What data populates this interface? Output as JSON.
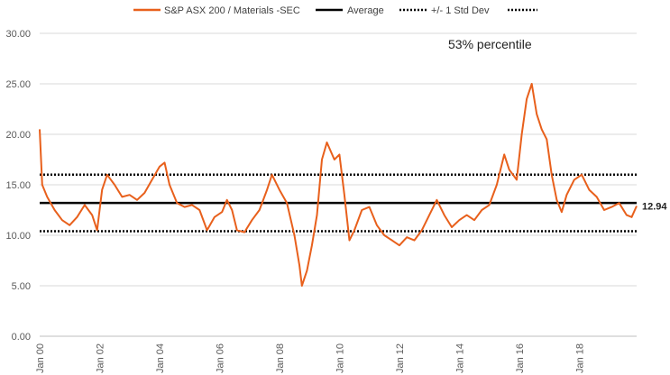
{
  "chart_data": {
    "type": "line",
    "title": "",
    "xlabel": "",
    "ylabel": "",
    "ylim": [
      0,
      30
    ],
    "y_ticks": [
      "0.00",
      "5.00",
      "10.00",
      "15.00",
      "20.00",
      "25.00",
      "30.00"
    ],
    "x_start": "2000-01",
    "x_end": "2019-12",
    "x_ticks": [
      {
        "label": "Jan 00",
        "year": 2000
      },
      {
        "label": "Jan 02",
        "year": 2002
      },
      {
        "label": "Jan 04",
        "year": 2004
      },
      {
        "label": "Jan 06",
        "year": 2006
      },
      {
        "label": "Jan 08",
        "year": 2008
      },
      {
        "label": "Jan 10",
        "year": 2010
      },
      {
        "label": "Jan 12",
        "year": 2012
      },
      {
        "label": "Jan 14",
        "year": 2014
      },
      {
        "label": "Jan 16",
        "year": 2016
      },
      {
        "label": "Jan 18",
        "year": 2018
      }
    ],
    "grid": "horizontal",
    "legend_position": "top",
    "series": [
      {
        "name": "S&P ASX 200 / Materials -SEC",
        "color": "#E8601C",
        "points": [
          [
            "2000-01",
            20.5
          ],
          [
            "2000-02",
            15.0
          ],
          [
            "2000-04",
            13.8
          ],
          [
            "2000-07",
            12.5
          ],
          [
            "2000-10",
            11.5
          ],
          [
            "2001-01",
            11.0
          ],
          [
            "2001-04",
            11.8
          ],
          [
            "2001-07",
            13.0
          ],
          [
            "2001-10",
            12.0
          ],
          [
            "2001-12",
            10.5
          ],
          [
            "2002-02",
            14.5
          ],
          [
            "2002-04",
            16.0
          ],
          [
            "2002-07",
            15.0
          ],
          [
            "2002-10",
            13.8
          ],
          [
            "2003-01",
            14.0
          ],
          [
            "2003-04",
            13.5
          ],
          [
            "2003-07",
            14.2
          ],
          [
            "2003-10",
            15.5
          ],
          [
            "2004-01",
            16.8
          ],
          [
            "2004-03",
            17.2
          ],
          [
            "2004-05",
            15.0
          ],
          [
            "2004-08",
            13.2
          ],
          [
            "2004-11",
            12.8
          ],
          [
            "2005-02",
            13.0
          ],
          [
            "2005-05",
            12.5
          ],
          [
            "2005-08",
            10.5
          ],
          [
            "2005-11",
            11.8
          ],
          [
            "2006-02",
            12.3
          ],
          [
            "2006-04",
            13.5
          ],
          [
            "2006-06",
            12.5
          ],
          [
            "2006-08",
            10.5
          ],
          [
            "2006-11",
            10.3
          ],
          [
            "2007-02",
            11.5
          ],
          [
            "2007-05",
            12.5
          ],
          [
            "2007-08",
            14.5
          ],
          [
            "2007-10",
            16.0
          ],
          [
            "2008-01",
            14.5
          ],
          [
            "2008-04",
            13.2
          ],
          [
            "2008-07",
            10.0
          ],
          [
            "2008-09",
            7.0
          ],
          [
            "2008-10",
            5.0
          ],
          [
            "2008-12",
            6.5
          ],
          [
            "2009-02",
            9.0
          ],
          [
            "2009-04",
            12.0
          ],
          [
            "2009-06",
            17.5
          ],
          [
            "2009-08",
            19.2
          ],
          [
            "2009-11",
            17.5
          ],
          [
            "2010-01",
            18.0
          ],
          [
            "2010-03",
            14.0
          ],
          [
            "2010-05",
            9.5
          ],
          [
            "2010-07",
            10.5
          ],
          [
            "2010-10",
            12.5
          ],
          [
            "2011-01",
            12.8
          ],
          [
            "2011-04",
            11.0
          ],
          [
            "2011-07",
            10.0
          ],
          [
            "2011-10",
            9.5
          ],
          [
            "2012-01",
            9.0
          ],
          [
            "2012-04",
            9.8
          ],
          [
            "2012-07",
            9.5
          ],
          [
            "2012-10",
            10.5
          ],
          [
            "2013-01",
            12.0
          ],
          [
            "2013-04",
            13.5
          ],
          [
            "2013-07",
            12.0
          ],
          [
            "2013-10",
            10.8
          ],
          [
            "2014-01",
            11.5
          ],
          [
            "2014-04",
            12.0
          ],
          [
            "2014-07",
            11.5
          ],
          [
            "2014-10",
            12.5
          ],
          [
            "2015-01",
            13.0
          ],
          [
            "2015-04",
            15.0
          ],
          [
            "2015-07",
            18.0
          ],
          [
            "2015-09",
            16.5
          ],
          [
            "2015-12",
            15.5
          ],
          [
            "2016-02",
            20.0
          ],
          [
            "2016-04",
            23.5
          ],
          [
            "2016-06",
            25.0
          ],
          [
            "2016-08",
            22.0
          ],
          [
            "2016-10",
            20.5
          ],
          [
            "2016-12",
            19.5
          ],
          [
            "2017-02",
            16.0
          ],
          [
            "2017-04",
            13.5
          ],
          [
            "2017-06",
            12.3
          ],
          [
            "2017-08",
            14.0
          ],
          [
            "2017-11",
            15.5
          ],
          [
            "2018-02",
            16.0
          ],
          [
            "2018-05",
            14.5
          ],
          [
            "2018-08",
            13.8
          ],
          [
            "2018-11",
            12.5
          ],
          [
            "2019-02",
            12.8
          ],
          [
            "2019-05",
            13.2
          ],
          [
            "2019-08",
            12.0
          ],
          [
            "2019-10",
            11.8
          ],
          [
            "2019-12",
            12.9
          ]
        ]
      },
      {
        "name": "Average",
        "color": "#000000",
        "style": "solid",
        "value": 13.2
      },
      {
        "name": "+/- 1 Std Dev",
        "color": "#000000",
        "style": "dotted",
        "value": 16.0
      },
      {
        "name": "",
        "color": "#000000",
        "style": "dotted",
        "value": 10.4
      }
    ],
    "annotations": {
      "percentile": "53% percentile",
      "last_value": "12.94"
    }
  }
}
